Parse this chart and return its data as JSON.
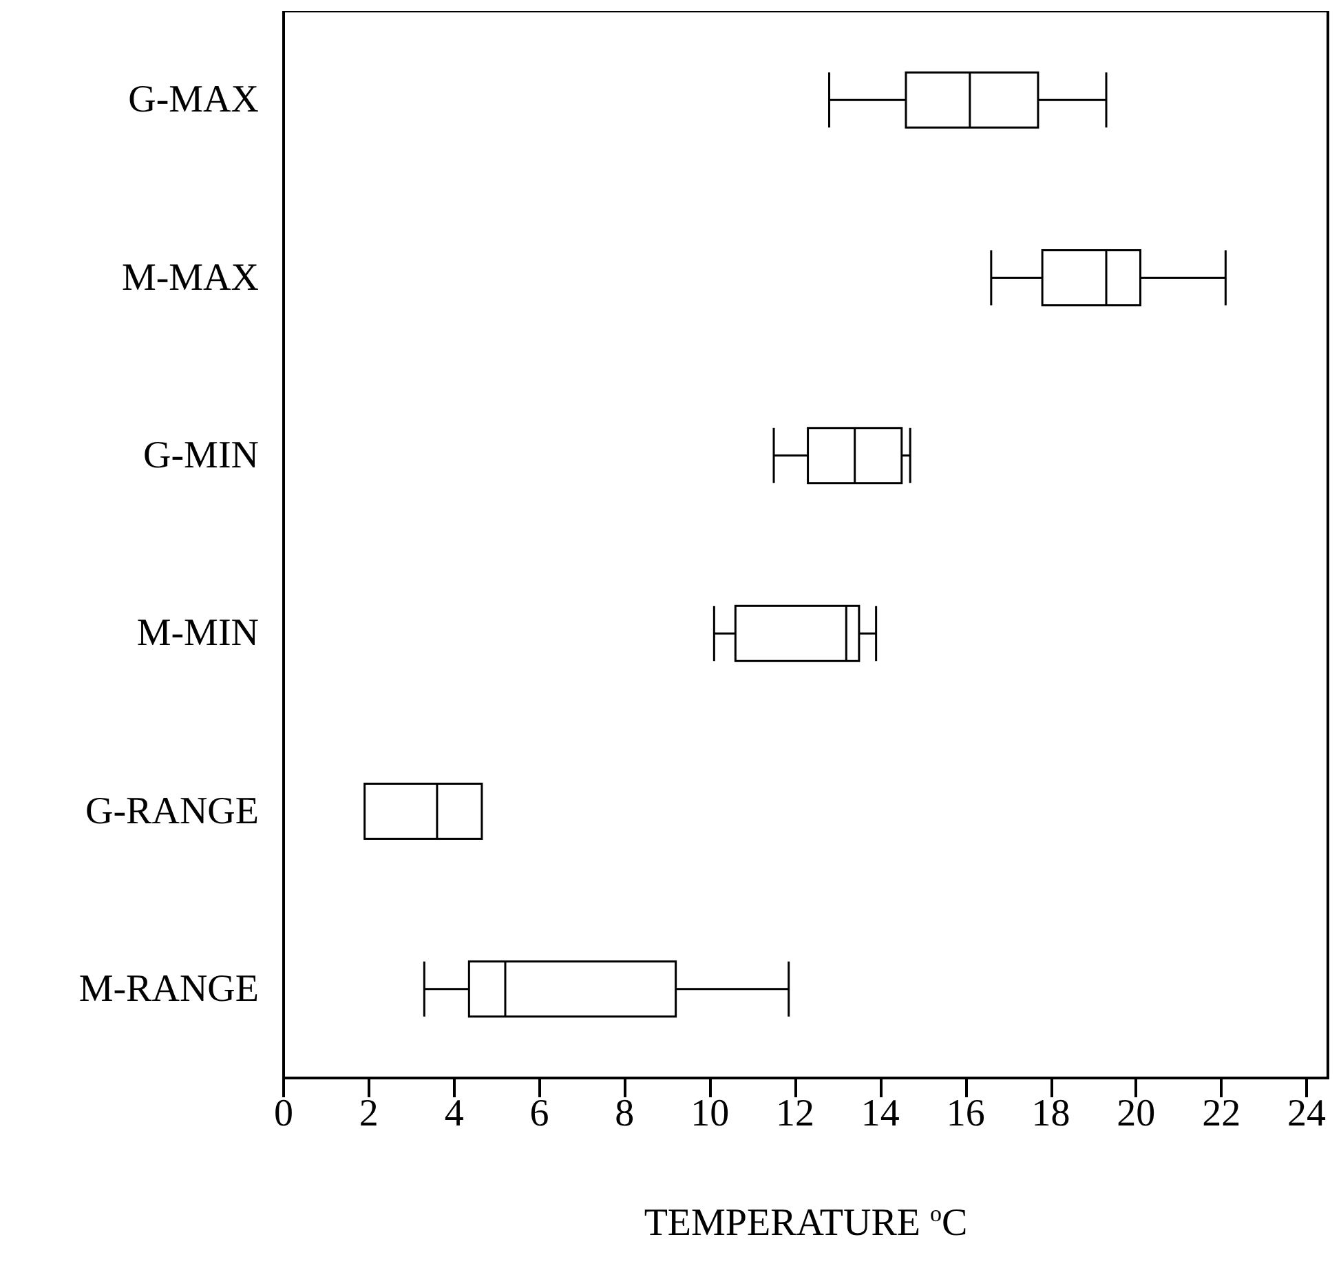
{
  "chart_data": {
    "type": "box",
    "categories": [
      "G-MAX",
      "M-MAX",
      "G-MIN",
      "M-MIN",
      "G-RANGE",
      "M-RANGE"
    ],
    "orientation": "horizontal",
    "xlabel": "TEMPERATURE $^{o}$C",
    "xlim": [
      0,
      24.5
    ],
    "xticks": [
      0,
      2,
      4,
      6,
      8,
      10,
      12,
      14,
      16,
      18,
      20,
      22,
      24
    ],
    "grid": false,
    "boxes": [
      {
        "low": 12.8,
        "q1": 14.6,
        "median": 16.1,
        "q3": 17.7,
        "high": 19.3
      },
      {
        "low": 16.6,
        "q1": 17.8,
        "median": 19.3,
        "q3": 20.1,
        "high": 22.1
      },
      {
        "low": 11.5,
        "q1": 12.3,
        "median": 13.4,
        "q3": 14.5,
        "high": 14.7
      },
      {
        "low": 10.1,
        "q1": 10.6,
        "median": 13.2,
        "q3": 13.5,
        "high": 13.9
      },
      {
        "low": 1.9,
        "q1": 1.9,
        "median": 3.6,
        "q3": 4.65,
        "high": 4.65
      },
      {
        "low": 3.3,
        "q1": 4.35,
        "median": 5.2,
        "q3": 9.2,
        "high": 11.85
      }
    ]
  }
}
